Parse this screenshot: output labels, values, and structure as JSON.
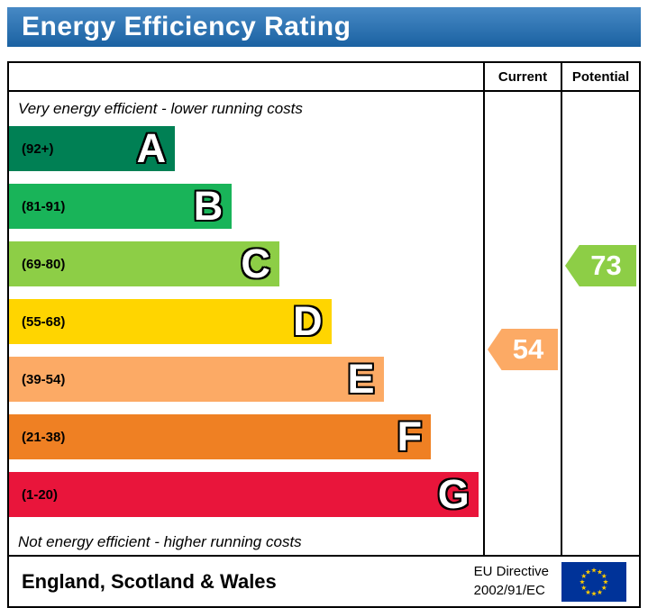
{
  "header": {
    "title": "Energy Efficiency Rating",
    "background": "#1e6fb8"
  },
  "columns": {
    "current": "Current",
    "potential": "Potential"
  },
  "captions": {
    "top": "Very energy efficient - lower running costs",
    "bottom": "Not energy efficient - higher running costs"
  },
  "chart_data": {
    "type": "bar",
    "title": "Energy Efficiency Rating",
    "categories": [
      "A",
      "B",
      "C",
      "D",
      "E",
      "F",
      "G"
    ],
    "bands": [
      {
        "letter": "A",
        "range": "(92+)",
        "color": "#008054",
        "width_pct": 35
      },
      {
        "letter": "B",
        "range": "(81-91)",
        "color": "#19b459",
        "width_pct": 47
      },
      {
        "letter": "C",
        "range": "(69-80)",
        "color": "#8dce46",
        "width_pct": 57
      },
      {
        "letter": "D",
        "range": "(55-68)",
        "color": "#ffd500",
        "width_pct": 68
      },
      {
        "letter": "E",
        "range": "(39-54)",
        "color": "#fcaa65",
        "width_pct": 79
      },
      {
        "letter": "F",
        "range": "(21-38)",
        "color": "#ef8023",
        "width_pct": 89
      },
      {
        "letter": "G",
        "range": "(1-20)",
        "color": "#e9153b",
        "width_pct": 99
      }
    ],
    "current": {
      "value": 54,
      "band": "E",
      "band_index": 4,
      "color": "#fcaa65"
    },
    "potential": {
      "value": 73,
      "band": "C",
      "band_index": 2,
      "color": "#8dce46"
    }
  },
  "footer": {
    "region": "England, Scotland & Wales",
    "directive_line1": "EU Directive",
    "directive_line2": "2002/91/EC",
    "eu_flag": {
      "background": "#003399",
      "star_color": "#ffcc00"
    }
  }
}
